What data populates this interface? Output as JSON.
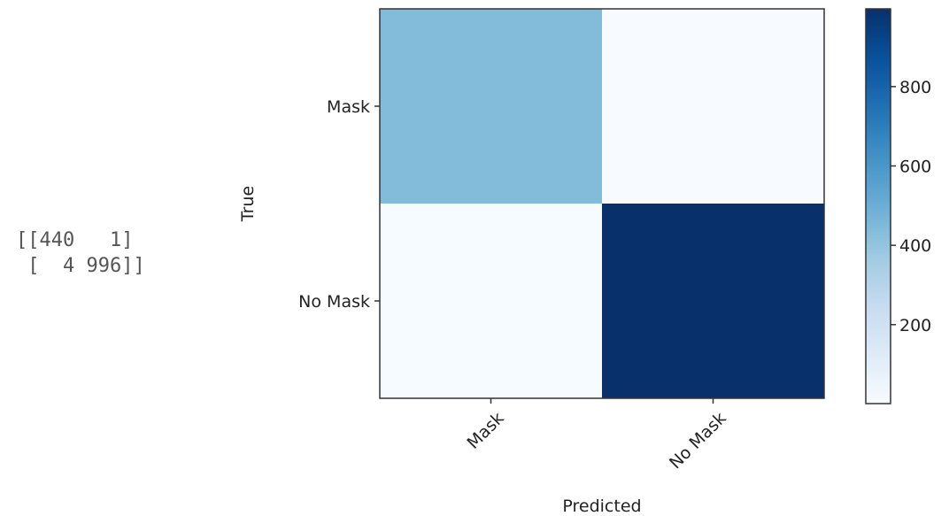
{
  "printed_matrix": {
    "line1": "[[440   1]",
    "line2": " [  4 996]]"
  },
  "chart_data": {
    "type": "heatmap",
    "x_categories": [
      "Mask",
      "No Mask"
    ],
    "y_categories": [
      "Mask",
      "No Mask"
    ],
    "values": [
      [
        440,
        1
      ],
      [
        4,
        996
      ]
    ],
    "xlabel": "Predicted",
    "ylabel": "True",
    "colormap": "Blues",
    "colormap_stops": [
      "#f7fbff",
      "#deebf7",
      "#c6dbef",
      "#9ecae1",
      "#6baed6",
      "#4292c6",
      "#2171b5",
      "#08519c",
      "#08306b"
    ],
    "colorbar": {
      "range": [
        1,
        996
      ],
      "ticks": [
        200,
        400,
        600,
        800
      ],
      "tick_labels": [
        "200",
        "400",
        "600",
        "800"
      ]
    }
  }
}
